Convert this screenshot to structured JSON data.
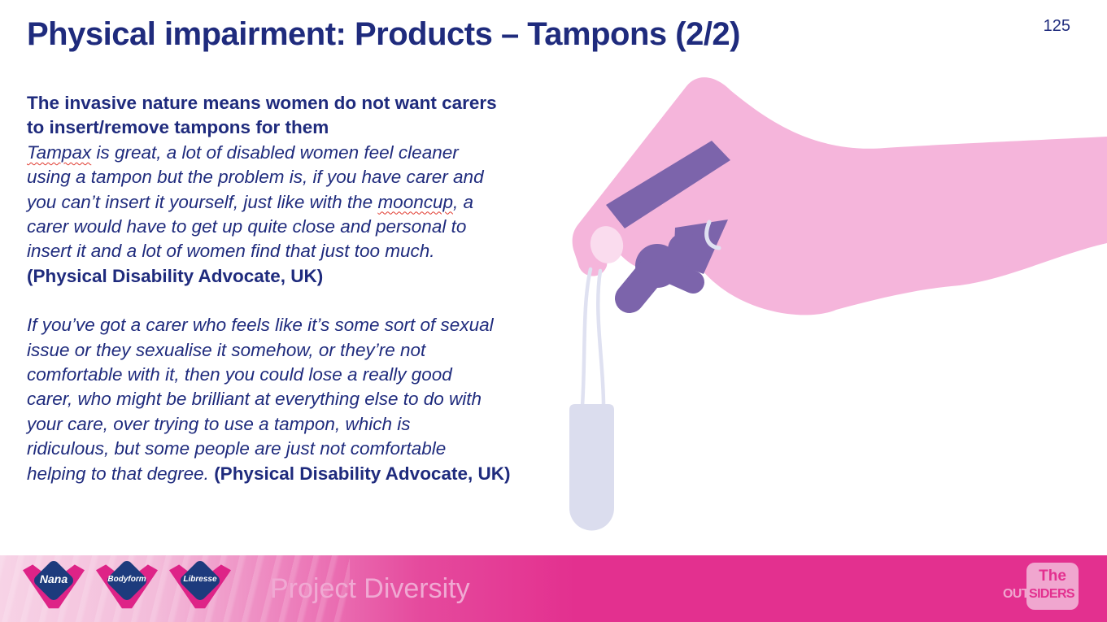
{
  "slide": {
    "page_number": "125",
    "title": "Physical impairment: Products – Tampons (2/2)"
  },
  "body": {
    "paragraphs": [
      {
        "runs": [
          {
            "text": "The invasive nature means women do not want carers",
            "style": "b"
          },
          {
            "br": true
          },
          {
            "text": "to insert/remove tampons for them",
            "style": "b"
          },
          {
            "br": true
          },
          {
            "text": "Tampax",
            "style": "i sq"
          },
          {
            "text": " is great, a lot of disabled women feel cleaner",
            "style": "i"
          },
          {
            "br": true
          },
          {
            "text": "using a tampon but the problem is, if you have carer and",
            "style": "i"
          },
          {
            "br": true
          },
          {
            "text": "you can’t insert it yourself, just like with the ",
            "style": "i"
          },
          {
            "text": "mooncup",
            "style": "i sq"
          },
          {
            "text": ", a",
            "style": "i"
          },
          {
            "br": true
          },
          {
            "text": "carer would have to get up quite close and personal to",
            "style": "i"
          },
          {
            "br": true
          },
          {
            "text": "insert it and a lot of women find that just too much.",
            "style": "i"
          },
          {
            "br": true
          },
          {
            "text": "(Physical Disability Advocate, UK)",
            "style": "b"
          }
        ]
      },
      {
        "runs": [
          {
            "text": "If you’ve got a carer who feels like it’s some sort of sexual",
            "style": "i"
          },
          {
            "br": true
          },
          {
            "text": "issue or they sexualise it somehow, or they’re not",
            "style": "i"
          },
          {
            "br": true
          },
          {
            "text": "comfortable with it, then you could lose a really good",
            "style": "i"
          },
          {
            "br": true
          },
          {
            "text": "carer, who might be brilliant at everything else to do with",
            "style": "i"
          },
          {
            "br": true
          },
          {
            "text": "your care, over trying to use a tampon, which is",
            "style": "i"
          },
          {
            "br": true
          },
          {
            "text": "ridiculous, but some people are just not comfortable",
            "style": "i"
          },
          {
            "br": true
          },
          {
            "text": "helping to that degree. ",
            "style": "i"
          },
          {
            "text": "(Physical Disability Advocate, UK)",
            "style": "b"
          }
        ]
      }
    ]
  },
  "illustration": {
    "description": "flat illustration of a pink hand holding a tampon by its string"
  },
  "footer": {
    "project_label": "Project Diversity",
    "brands": [
      "Nana",
      "Bodyform",
      "Libresse"
    ],
    "outsiders": {
      "line1": "The",
      "word_left": "OUT",
      "word_right": "SIDERS"
    }
  },
  "colors": {
    "text_navy": "#1f2b7d",
    "hand_pink": "#f5b5db",
    "nail_pink": "#fadcee",
    "finger_purple": "#7c64ab",
    "tampon_lavender": "#dbddee",
    "string_lavender": "#dfe1f1",
    "footer_magenta": "#e3308f",
    "footer_light_pink": "#f7d3e6",
    "brand_wing_magenta": "#de2387",
    "brand_diamond_navy": "#1d3b7d",
    "project_text_pink": "#f0a9d3",
    "outsiders_box_pink": "#f0a6cf",
    "squiggle_red": "#e0392e"
  }
}
